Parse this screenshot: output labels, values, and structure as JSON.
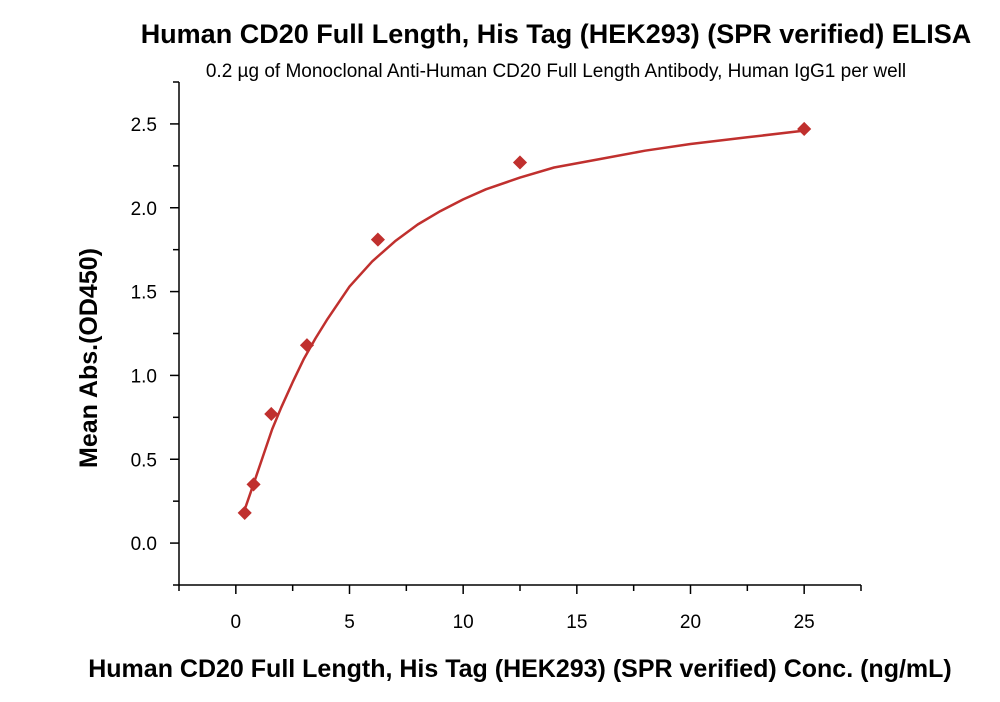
{
  "chart_data": {
    "type": "scatter",
    "title": "Human CD20 Full Length, His Tag (HEK293) (SPR verified) ELISA",
    "subtitle": "0.2 µg of Monoclonal Anti-Human CD20 Full Length Antibody, Human IgG1 per well",
    "xlabel": "Human CD20 Full Length, His Tag (HEK293) (SPR verified) Conc. (ng/mL)",
    "ylabel": "Mean Abs.(OD450)",
    "xlim": [
      -2.5,
      27.5
    ],
    "ylim": [
      -0.25,
      2.75
    ],
    "xticks": [
      0,
      5,
      10,
      15,
      20,
      25
    ],
    "yticks": [
      0.0,
      0.5,
      1.0,
      1.5,
      2.0,
      2.5
    ],
    "xtick_labels": [
      "0",
      "5",
      "10",
      "15",
      "20",
      "25"
    ],
    "ytick_labels": [
      "0.0",
      "0.5",
      "1.0",
      "1.5",
      "2.0",
      "2.5"
    ],
    "grid": false,
    "series": [
      {
        "marker": "diamond",
        "color": "#c0302e",
        "points": [
          {
            "x": 0.39,
            "y": 0.18
          },
          {
            "x": 0.78,
            "y": 0.35
          },
          {
            "x": 1.56,
            "y": 0.77
          },
          {
            "x": 3.13,
            "y": 1.18
          },
          {
            "x": 6.25,
            "y": 1.81
          },
          {
            "x": 12.5,
            "y": 2.27
          },
          {
            "x": 25.0,
            "y": 2.47
          }
        ]
      }
    ],
    "fit_curve": {
      "color": "#c0302e",
      "points": [
        {
          "x": 0.39,
          "y": 0.2
        },
        {
          "x": 0.8,
          "y": 0.36
        },
        {
          "x": 1.2,
          "y": 0.52
        },
        {
          "x": 1.6,
          "y": 0.68
        },
        {
          "x": 2.0,
          "y": 0.81
        },
        {
          "x": 2.5,
          "y": 0.96
        },
        {
          "x": 3.0,
          "y": 1.1
        },
        {
          "x": 3.5,
          "y": 1.22
        },
        {
          "x": 4.0,
          "y": 1.33
        },
        {
          "x": 5.0,
          "y": 1.53
        },
        {
          "x": 6.0,
          "y": 1.68
        },
        {
          "x": 7.0,
          "y": 1.8
        },
        {
          "x": 8.0,
          "y": 1.9
        },
        {
          "x": 9.0,
          "y": 1.98
        },
        {
          "x": 10.0,
          "y": 2.05
        },
        {
          "x": 11.0,
          "y": 2.11
        },
        {
          "x": 12.5,
          "y": 2.18
        },
        {
          "x": 14.0,
          "y": 2.24
        },
        {
          "x": 16.0,
          "y": 2.29
        },
        {
          "x": 18.0,
          "y": 2.34
        },
        {
          "x": 20.0,
          "y": 2.38
        },
        {
          "x": 22.5,
          "y": 2.42
        },
        {
          "x": 25.0,
          "y": 2.46
        }
      ]
    }
  }
}
